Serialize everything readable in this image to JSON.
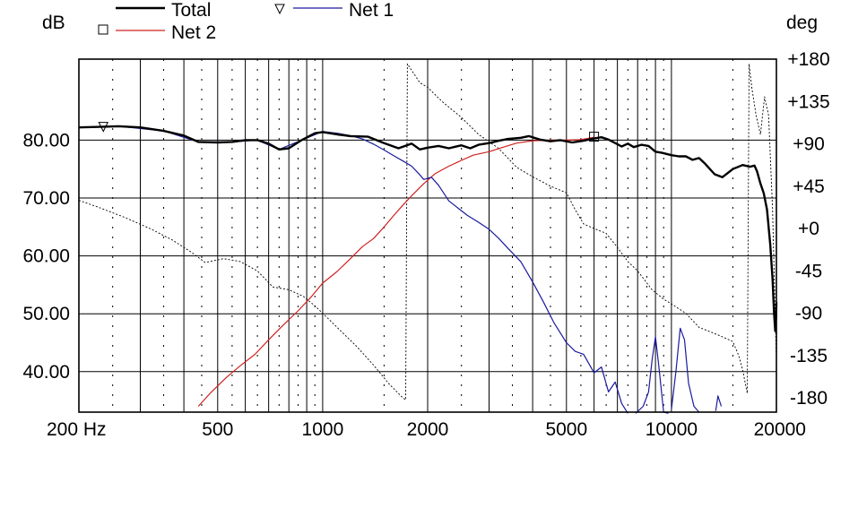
{
  "chart_data": {
    "type": "line",
    "x_scale": "log",
    "xlim": [
      200,
      20000
    ],
    "ylim_left": [
      33,
      94
    ],
    "ylim_right": [
      -195,
      180
    ],
    "ylabel_left": "dB",
    "ylabel_right": "deg",
    "x_tick_labels": [
      {
        "v": 200,
        "t": "200 Hz"
      },
      {
        "v": 500,
        "t": "500"
      },
      {
        "v": 1000,
        "t": "1000"
      },
      {
        "v": 2000,
        "t": "2000"
      },
      {
        "v": 5000,
        "t": "5000"
      },
      {
        "v": 10000,
        "t": "10000"
      },
      {
        "v": 20000,
        "t": "20000"
      }
    ],
    "y_left_ticks": [
      {
        "v": 80,
        "t": "80.00"
      },
      {
        "v": 70,
        "t": "70.00"
      },
      {
        "v": 60,
        "t": "60.00"
      },
      {
        "v": 50,
        "t": "50.00"
      },
      {
        "v": 40,
        "t": "40.00"
      }
    ],
    "y_right_ticks": [
      {
        "v": 180,
        "t": "+180"
      },
      {
        "v": 135,
        "t": "+135"
      },
      {
        "v": 90,
        "t": "+90"
      },
      {
        "v": 45,
        "t": "+45"
      },
      {
        "v": 0,
        "t": "+0"
      },
      {
        "v": -45,
        "t": "-45"
      },
      {
        "v": -90,
        "t": "-90"
      },
      {
        "v": -135,
        "t": "-135"
      },
      {
        "v": -180,
        "t": "-180"
      }
    ],
    "legend": [
      {
        "name": "Total",
        "color": "#000000",
        "marker": "none",
        "style": "solid-bold"
      },
      {
        "name": "Net 1",
        "color": "#1a1aa0",
        "marker": "triangle",
        "style": "solid"
      },
      {
        "name": "Net 2",
        "color": "#d02020",
        "marker": "square",
        "style": "solid"
      }
    ],
    "series": [
      {
        "name": "Total",
        "axis": "left",
        "color": "#000000",
        "width": 2.4,
        "dash": "",
        "points": [
          [
            200,
            82.2
          ],
          [
            230,
            82.3
          ],
          [
            260,
            82.4
          ],
          [
            300,
            82.2
          ],
          [
            350,
            81.6
          ],
          [
            400,
            80.8
          ],
          [
            440,
            79.7
          ],
          [
            500,
            79.6
          ],
          [
            550,
            79.7
          ],
          [
            600,
            80.0
          ],
          [
            650,
            80.0
          ],
          [
            700,
            79.4
          ],
          [
            750,
            78.4
          ],
          [
            800,
            78.6
          ],
          [
            870,
            80.0
          ],
          [
            950,
            81.2
          ],
          [
            1000,
            81.4
          ],
          [
            1100,
            81.0
          ],
          [
            1200,
            80.7
          ],
          [
            1350,
            80.6
          ],
          [
            1500,
            79.5
          ],
          [
            1650,
            78.6
          ],
          [
            1800,
            79.4
          ],
          [
            1900,
            78.4
          ],
          [
            2000,
            78.7
          ],
          [
            2150,
            79.0
          ],
          [
            2300,
            78.6
          ],
          [
            2500,
            79.1
          ],
          [
            2650,
            78.6
          ],
          [
            2800,
            79.2
          ],
          [
            3000,
            79.5
          ],
          [
            3200,
            79.9
          ],
          [
            3400,
            80.2
          ],
          [
            3700,
            80.4
          ],
          [
            3900,
            80.7
          ],
          [
            4200,
            80.1
          ],
          [
            4500,
            79.8
          ],
          [
            4800,
            80.0
          ],
          [
            5200,
            79.6
          ],
          [
            5600,
            79.9
          ],
          [
            6000,
            80.3
          ],
          [
            6300,
            80.5
          ],
          [
            6600,
            80.1
          ],
          [
            6900,
            79.5
          ],
          [
            7200,
            78.9
          ],
          [
            7500,
            79.4
          ],
          [
            7800,
            78.8
          ],
          [
            8200,
            79.2
          ],
          [
            8600,
            79.0
          ],
          [
            9000,
            78.0
          ],
          [
            9400,
            77.8
          ],
          [
            10000,
            77.4
          ],
          [
            10500,
            77.2
          ],
          [
            11000,
            77.2
          ],
          [
            11500,
            76.6
          ],
          [
            12000,
            76.9
          ],
          [
            12500,
            75.9
          ],
          [
            13300,
            74.1
          ],
          [
            14000,
            73.6
          ],
          [
            15000,
            75.0
          ],
          [
            16000,
            75.7
          ],
          [
            16800,
            75.4
          ],
          [
            17300,
            75.6
          ],
          [
            17600,
            74.6
          ],
          [
            18000,
            72.5
          ],
          [
            18400,
            70.8
          ],
          [
            18800,
            68.0
          ],
          [
            19200,
            62.0
          ],
          [
            19500,
            56.0
          ],
          [
            19700,
            50.0
          ],
          [
            19850,
            47.0
          ],
          [
            19950,
            49.5
          ],
          [
            20000,
            52.0
          ]
        ]
      },
      {
        "name": "Net 1",
        "axis": "left",
        "color": "#1a1aa0",
        "width": 1.2,
        "dash": "",
        "points": [
          [
            200,
            82.2
          ],
          [
            260,
            82.4
          ],
          [
            350,
            81.6
          ],
          [
            440,
            79.7
          ],
          [
            550,
            79.7
          ],
          [
            650,
            80.0
          ],
          [
            750,
            78.4
          ],
          [
            870,
            80.0
          ],
          [
            1000,
            81.5
          ],
          [
            1100,
            81.2
          ],
          [
            1200,
            80.8
          ],
          [
            1300,
            80.2
          ],
          [
            1400,
            79.3
          ],
          [
            1500,
            78.3
          ],
          [
            1600,
            77.3
          ],
          [
            1700,
            76.4
          ],
          [
            1800,
            75.5
          ],
          [
            1900,
            74.0
          ],
          [
            1950,
            73.2
          ],
          [
            2050,
            73.6
          ],
          [
            2150,
            72.2
          ],
          [
            2300,
            69.5
          ],
          [
            2450,
            68.2
          ],
          [
            2600,
            67.0
          ],
          [
            2800,
            65.8
          ],
          [
            3000,
            64.6
          ],
          [
            3200,
            63.0
          ],
          [
            3400,
            61.3
          ],
          [
            3700,
            59.0
          ],
          [
            4000,
            55.5
          ],
          [
            4300,
            52.0
          ],
          [
            4600,
            48.5
          ],
          [
            5000,
            45.0
          ],
          [
            5300,
            43.5
          ],
          [
            5600,
            43.0
          ],
          [
            6000,
            39.8
          ],
          [
            6300,
            40.8
          ],
          [
            6600,
            36.5
          ],
          [
            6900,
            38.2
          ],
          [
            7200,
            34.5
          ],
          [
            7500,
            32.8
          ]
        ]
      },
      {
        "name": "Net 1 (HF)",
        "axis": "left",
        "color": "#1a1aa0",
        "width": 1.2,
        "dash": "",
        "points": [
          [
            7900,
            32.8
          ],
          [
            8300,
            34.0
          ],
          [
            8600,
            36.5
          ],
          [
            8800,
            42.0
          ],
          [
            9000,
            46.0
          ],
          [
            9200,
            41.0
          ],
          [
            9500,
            33.0
          ],
          [
            9800,
            32.8
          ]
        ]
      },
      {
        "name": "Net 1 (HF2)",
        "axis": "left",
        "color": "#1a1aa0",
        "width": 1.2,
        "dash": "",
        "points": [
          [
            10000,
            33.5
          ],
          [
            10300,
            40.0
          ],
          [
            10600,
            47.5
          ],
          [
            10900,
            45.5
          ],
          [
            11200,
            38.0
          ],
          [
            11600,
            34.0
          ],
          [
            12000,
            33.0
          ]
        ]
      },
      {
        "name": "Net 1 (HF3)",
        "axis": "left",
        "color": "#1a1aa0",
        "width": 1.2,
        "dash": "",
        "points": [
          [
            13400,
            33.2
          ],
          [
            13600,
            35.8
          ],
          [
            13900,
            34.0
          ]
        ]
      },
      {
        "name": "Net 2",
        "axis": "left",
        "color": "#d02020",
        "width": 1.2,
        "dash": "",
        "points": [
          [
            440,
            34.0
          ],
          [
            480,
            36.5
          ],
          [
            530,
            39.0
          ],
          [
            580,
            41.0
          ],
          [
            640,
            43.0
          ],
          [
            700,
            45.5
          ],
          [
            770,
            48.0
          ],
          [
            850,
            50.5
          ],
          [
            930,
            53.0
          ],
          [
            1000,
            55.3
          ],
          [
            1100,
            57.3
          ],
          [
            1200,
            59.5
          ],
          [
            1300,
            61.6
          ],
          [
            1400,
            63.0
          ],
          [
            1500,
            65.0
          ],
          [
            1600,
            67.0
          ],
          [
            1700,
            68.8
          ],
          [
            1800,
            70.4
          ],
          [
            1950,
            72.5
          ],
          [
            2100,
            74.2
          ],
          [
            2300,
            75.5
          ],
          [
            2500,
            76.5
          ],
          [
            2700,
            77.4
          ],
          [
            3000,
            78.0
          ],
          [
            3300,
            78.8
          ],
          [
            3600,
            79.5
          ],
          [
            4000,
            79.9
          ],
          [
            4500,
            80.0
          ],
          [
            5000,
            80.0
          ],
          [
            5500,
            80.1
          ],
          [
            6000,
            80.5
          ]
        ]
      },
      {
        "name": "Phase",
        "axis": "right",
        "color": "#000000",
        "width": 0.9,
        "dash": "2,2",
        "points": [
          [
            200,
            30
          ],
          [
            230,
            22
          ],
          [
            270,
            12
          ],
          [
            320,
            0
          ],
          [
            370,
            -12
          ],
          [
            420,
            -25
          ],
          [
            460,
            -36
          ],
          [
            520,
            -32
          ],
          [
            580,
            -35
          ],
          [
            650,
            -45
          ],
          [
            720,
            -62
          ],
          [
            800,
            -65
          ],
          [
            880,
            -72
          ],
          [
            950,
            -82
          ],
          [
            1000,
            -90
          ],
          [
            1100,
            -105
          ],
          [
            1250,
            -125
          ],
          [
            1400,
            -145
          ],
          [
            1550,
            -165
          ],
          [
            1700,
            -180
          ],
          [
            1730,
            -182
          ],
          [
            1750,
            175
          ],
          [
            1900,
            155
          ],
          [
            2000,
            150
          ],
          [
            2200,
            135
          ],
          [
            2500,
            118
          ],
          [
            2800,
            100
          ],
          [
            3200,
            85
          ],
          [
            3600,
            65
          ],
          [
            4000,
            55
          ],
          [
            4500,
            45
          ],
          [
            5000,
            38
          ],
          [
            5300,
            20
          ],
          [
            5600,
            5
          ],
          [
            6000,
            0
          ],
          [
            6500,
            -5
          ],
          [
            7000,
            -20
          ],
          [
            7500,
            -35
          ],
          [
            8000,
            -45
          ],
          [
            8800,
            -65
          ],
          [
            9500,
            -75
          ],
          [
            10000,
            -80
          ],
          [
            11000,
            -90
          ],
          [
            12000,
            -105
          ],
          [
            13000,
            -110
          ],
          [
            14000,
            -115
          ],
          [
            15000,
            -120
          ],
          [
            15600,
            -135
          ],
          [
            16000,
            -150
          ],
          [
            16300,
            -165
          ],
          [
            16500,
            -175
          ],
          [
            16700,
            175
          ],
          [
            17000,
            150
          ],
          [
            17500,
            120
          ],
          [
            18000,
            100
          ],
          [
            18500,
            140
          ],
          [
            19000,
            120
          ],
          [
            19500,
            20
          ],
          [
            20000,
            -140
          ]
        ]
      }
    ],
    "markers": [
      {
        "series": "Net 1",
        "shape": "triangle",
        "x": 235,
        "y": 82.3
      },
      {
        "series": "Net 2",
        "shape": "square",
        "x": 6000,
        "y": 80.6
      }
    ],
    "grid": true,
    "legend_position": "top"
  }
}
